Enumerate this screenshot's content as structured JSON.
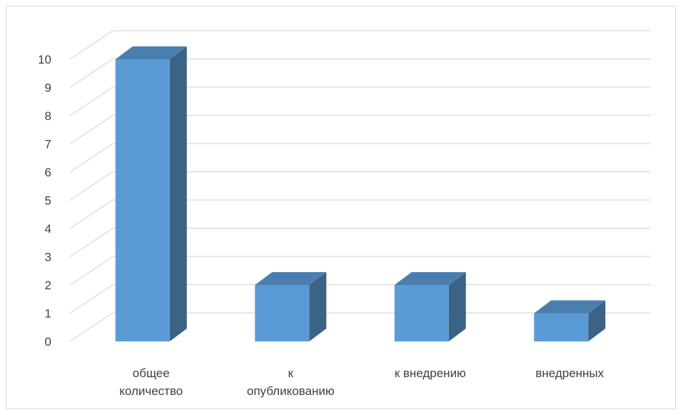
{
  "chart_data": {
    "type": "bar",
    "title": "",
    "xlabel": "",
    "ylabel": "",
    "categories": [
      [
        "общее",
        "количество"
      ],
      [
        "к",
        "опубликованию"
      ],
      [
        "к внедрению"
      ],
      [
        "внедренных"
      ]
    ],
    "values": [
      10,
      2,
      2,
      1
    ],
    "ylim": [
      0,
      10
    ],
    "yticks": [
      "0",
      "1",
      "2",
      "3",
      "4",
      "5",
      "6",
      "7",
      "8",
      "9",
      "10"
    ],
    "grid": true,
    "legend": "none",
    "style": "3d-column",
    "colors": {
      "front": "#5b9bd5",
      "side": "#3b6386",
      "top": "#4a7eaf",
      "grid": "#d9d9d9",
      "text": "#404040"
    }
  }
}
